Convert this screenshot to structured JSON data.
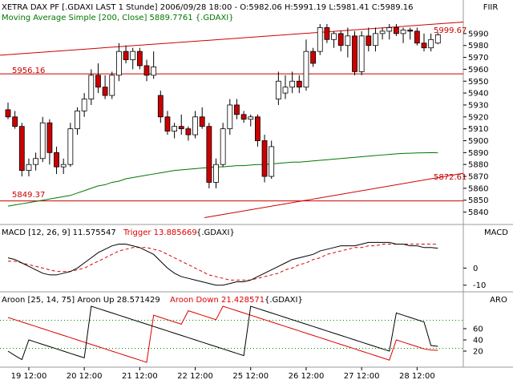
{
  "window": {
    "fiir_label": "FIIR",
    "macd_label": "MACD",
    "aro_label": "ARO"
  },
  "price_panel": {
    "header": "XETRA DAX PF [.GDAXI LAST 1 Stunde] 2006/09/28 18:00 - O:5982.06 H:5991.19 L:5981.41 C:5989.16",
    "ma_legend": "Moving Average Simple [200, Close] 5889.7761 {.GDAXI}",
    "line_labels": [
      "5956.16",
      "5849.37",
      "5872.61",
      "5999.67"
    ]
  },
  "macd_panel": {
    "header_main": "MACD [12, 26, 9] 11.575547",
    "header_trigger": "Trigger 13.885669",
    "header_suffix": "{.GDAXI}"
  },
  "aroon_panel": {
    "header_main": "Aroon [25, 14, 75] Aroon Up 28.571429",
    "header_down": "Aroon Down 21.428571",
    "header_suffix": "{.GDAXI}"
  },
  "colors": {
    "background": "#ffffff",
    "up_candle": "#ffffff",
    "down_candle": "#cc0000",
    "moving_average": "#007700",
    "trendline": "#cc0000",
    "macd": "#000000",
    "trigger": "#dd0000",
    "aroon_up": "#000000",
    "aroon_down": "#dd0000",
    "dotted_ref": "#008800"
  },
  "chart_data": [
    {
      "type": "candlestick",
      "x_tick_labels": [
        "19 12:00",
        "20 12:00",
        "21 12:00",
        "22 12:00",
        "25 12:00",
        "26 12:00",
        "27 12:00",
        "28 12:00"
      ],
      "y_tick_labels": [
        5840,
        5850,
        5860,
        5870,
        5880,
        5890,
        5900,
        5910,
        5920,
        5930,
        5940,
        5950,
        5960,
        5970,
        5980,
        5990
      ],
      "ylim": [
        5835,
        5998
      ],
      "candles": [
        {
          "o": 5926,
          "h": 5932,
          "l": 5918,
          "c": 5920
        },
        {
          "o": 5920,
          "h": 5925,
          "l": 5910,
          "c": 5912
        },
        {
          "o": 5912,
          "h": 5915,
          "l": 5870,
          "c": 5875
        },
        {
          "o": 5875,
          "h": 5885,
          "l": 5870,
          "c": 5880
        },
        {
          "o": 5880,
          "h": 5890,
          "l": 5875,
          "c": 5885
        },
        {
          "o": 5885,
          "h": 5920,
          "l": 5882,
          "c": 5915
        },
        {
          "o": 5915,
          "h": 5918,
          "l": 5880,
          "c": 5890
        },
        {
          "o": 5890,
          "h": 5895,
          "l": 5872,
          "c": 5878
        },
        {
          "o": 5878,
          "h": 5885,
          "l": 5872,
          "c": 5880
        },
        {
          "o": 5880,
          "h": 5915,
          "l": 5878,
          "c": 5910
        },
        {
          "o": 5910,
          "h": 5928,
          "l": 5905,
          "c": 5925
        },
        {
          "o": 5925,
          "h": 5940,
          "l": 5920,
          "c": 5935
        },
        {
          "o": 5935,
          "h": 5960,
          "l": 5930,
          "c": 5955
        },
        {
          "o": 5955,
          "h": 5965,
          "l": 5940,
          "c": 5945
        },
        {
          "o": 5945,
          "h": 5955,
          "l": 5935,
          "c": 5938
        },
        {
          "o": 5938,
          "h": 5958,
          "l": 5935,
          "c": 5955
        },
        {
          "o": 5955,
          "h": 5982,
          "l": 5950,
          "c": 5975
        },
        {
          "o": 5975,
          "h": 5980,
          "l": 5965,
          "c": 5968
        },
        {
          "o": 5968,
          "h": 5978,
          "l": 5960,
          "c": 5975
        },
        {
          "o": 5975,
          "h": 5978,
          "l": 5960,
          "c": 5963
        },
        {
          "o": 5963,
          "h": 5968,
          "l": 5950,
          "c": 5955
        },
        {
          "o": 5955,
          "h": 5975,
          "l": 5952,
          "c": 5962
        },
        {
          "o": 5938,
          "h": 5942,
          "l": 5915,
          "c": 5920
        },
        {
          "o": 5920,
          "h": 5925,
          "l": 5905,
          "c": 5908
        },
        {
          "o": 5908,
          "h": 5915,
          "l": 5902,
          "c": 5912
        },
        {
          "o": 5912,
          "h": 5922,
          "l": 5905,
          "c": 5910
        },
        {
          "o": 5910,
          "h": 5912,
          "l": 5900,
          "c": 5905
        },
        {
          "o": 5905,
          "h": 5925,
          "l": 5902,
          "c": 5920
        },
        {
          "o": 5920,
          "h": 5928,
          "l": 5910,
          "c": 5912
        },
        {
          "o": 5912,
          "h": 5915,
          "l": 5860,
          "c": 5865
        },
        {
          "o": 5865,
          "h": 5885,
          "l": 5860,
          "c": 5880
        },
        {
          "o": 5880,
          "h": 5915,
          "l": 5878,
          "c": 5910
        },
        {
          "o": 5910,
          "h": 5935,
          "l": 5905,
          "c": 5930
        },
        {
          "o": 5930,
          "h": 5935,
          "l": 5918,
          "c": 5922
        },
        {
          "o": 5922,
          "h": 5925,
          "l": 5915,
          "c": 5918
        },
        {
          "o": 5918,
          "h": 5922,
          "l": 5912,
          "c": 5920
        },
        {
          "o": 5920,
          "h": 5922,
          "l": 5895,
          "c": 5900
        },
        {
          "o": 5900,
          "h": 5905,
          "l": 5865,
          "c": 5870
        },
        {
          "o": 5870,
          "h": 5900,
          "l": 5868,
          "c": 5895
        },
        {
          "o": 5935,
          "h": 5958,
          "l": 5930,
          "c": 5950
        },
        {
          "o": 5940,
          "h": 5955,
          "l": 5935,
          "c": 5945
        },
        {
          "o": 5945,
          "h": 5958,
          "l": 5940,
          "c": 5950
        },
        {
          "o": 5950,
          "h": 5955,
          "l": 5940,
          "c": 5945
        },
        {
          "o": 5945,
          "h": 5985,
          "l": 5942,
          "c": 5975
        },
        {
          "o": 5975,
          "h": 5978,
          "l": 5962,
          "c": 5965
        },
        {
          "o": 5975,
          "h": 5998,
          "l": 5972,
          "c": 5995
        },
        {
          "o": 5995,
          "h": 5998,
          "l": 5982,
          "c": 5985
        },
        {
          "o": 5985,
          "h": 5992,
          "l": 5978,
          "c": 5990
        },
        {
          "o": 5990,
          "h": 5992,
          "l": 5975,
          "c": 5980
        },
        {
          "o": 5980,
          "h": 5995,
          "l": 5970,
          "c": 5988
        },
        {
          "o": 5988,
          "h": 5992,
          "l": 5955,
          "c": 5958
        },
        {
          "o": 5958,
          "h": 5992,
          "l": 5955,
          "c": 5988
        },
        {
          "o": 5988,
          "h": 5995,
          "l": 5975,
          "c": 5980
        },
        {
          "o": 5980,
          "h": 5995,
          "l": 5975,
          "c": 5990
        },
        {
          "o": 5990,
          "h": 5995,
          "l": 5985,
          "c": 5992
        },
        {
          "o": 5992,
          "h": 5998,
          "l": 5985,
          "c": 5995
        },
        {
          "o": 5995,
          "h": 5998,
          "l": 5988,
          "c": 5990
        },
        {
          "o": 5990,
          "h": 5995,
          "l": 5982,
          "c": 5993
        },
        {
          "o": 5993,
          "h": 5995,
          "l": 5985,
          "c": 5992
        },
        {
          "o": 5992,
          "h": 5995,
          "l": 5980,
          "c": 5982
        },
        {
          "o": 5982,
          "h": 5990,
          "l": 5975,
          "c": 5978
        },
        {
          "o": 5978,
          "h": 5990,
          "l": 5975,
          "c": 5985
        },
        {
          "o": 5982,
          "h": 5991,
          "l": 5981,
          "c": 5989
        }
      ],
      "moving_average": [
        5845,
        5846,
        5847,
        5848,
        5849,
        5850,
        5851,
        5852,
        5853,
        5854,
        5856,
        5858,
        5860,
        5862,
        5863,
        5865,
        5866,
        5868,
        5869,
        5870,
        5871,
        5872,
        5873,
        5874,
        5875,
        5875.5,
        5876,
        5876.5,
        5877,
        5877.5,
        5878,
        5878,
        5878.5,
        5879,
        5879,
        5879.5,
        5880,
        5880,
        5880.5,
        5881,
        5881.5,
        5882,
        5882,
        5882.5,
        5883,
        5883.5,
        5884,
        5884.5,
        5885,
        5885.5,
        5886,
        5886.5,
        5887,
        5887.5,
        5888,
        5888.5,
        5889,
        5889.3,
        5889.5,
        5889.7,
        5889.8,
        5890,
        5889.78
      ],
      "horizontal_levels": [
        5956.16,
        5849.37
      ],
      "upper_trendline": [
        5971.8,
        5999.67
      ],
      "lower_trendline": [
        5835.3,
        5872.61
      ]
    },
    {
      "type": "line",
      "name_label": "MACD",
      "y_tick_labels": [
        0,
        -10
      ],
      "ylim": [
        -12,
        18
      ],
      "macd": [
        6,
        5,
        3,
        1,
        -1,
        -3,
        -4,
        -4,
        -3,
        -2,
        0,
        3,
        6,
        9,
        11,
        13,
        14,
        14,
        13,
        12,
        10,
        8,
        4,
        0,
        -3,
        -5,
        -6,
        -7,
        -8,
        -9,
        -10,
        -10,
        -9,
        -8,
        -8,
        -7,
        -5,
        -3,
        -1,
        1,
        3,
        5,
        6,
        7,
        8,
        10,
        11,
        12,
        13,
        13,
        13,
        14,
        15,
        15,
        15,
        15,
        14,
        14,
        13,
        13,
        12,
        12,
        11.6
      ],
      "trigger": [
        4,
        4,
        3,
        2,
        1,
        0,
        -1,
        -2,
        -2,
        -2,
        -1,
        0,
        2,
        4,
        6,
        8,
        10,
        11,
        12,
        12,
        12,
        11,
        10,
        8,
        6,
        4,
        2,
        0,
        -2,
        -4,
        -5,
        -6,
        -7,
        -7,
        -7,
        -7,
        -6,
        -5,
        -4,
        -3,
        -1,
        0,
        2,
        3,
        5,
        6,
        8,
        9,
        10,
        11,
        12,
        12,
        13,
        13,
        14,
        14,
        14,
        14,
        14,
        14,
        14,
        14,
        13.9
      ]
    },
    {
      "type": "line",
      "name_label": "ARO",
      "y_tick_labels": [
        60,
        40,
        20
      ],
      "ylim": [
        0,
        100
      ],
      "reference_levels": [
        75,
        25
      ],
      "aroon_up": [
        20,
        12,
        5,
        40,
        36,
        32,
        28,
        24,
        20,
        16,
        12,
        8,
        100,
        96,
        92,
        88,
        84,
        80,
        76,
        72,
        68,
        64,
        60,
        56,
        52,
        48,
        44,
        40,
        36,
        32,
        28,
        24,
        20,
        16,
        12,
        100,
        96,
        92,
        88,
        84,
        80,
        76,
        72,
        68,
        64,
        60,
        56,
        52,
        48,
        44,
        40,
        36,
        32,
        28,
        24,
        20,
        88,
        84,
        80,
        76,
        72,
        30,
        28.6
      ],
      "aroon_down": [
        80,
        76,
        72,
        68,
        64,
        60,
        56,
        52,
        48,
        44,
        40,
        36,
        32,
        28,
        24,
        20,
        16,
        12,
        8,
        4,
        0,
        84,
        80,
        76,
        72,
        68,
        92,
        88,
        84,
        80,
        76,
        100,
        96,
        92,
        88,
        84,
        80,
        76,
        72,
        68,
        64,
        60,
        56,
        52,
        48,
        44,
        40,
        36,
        32,
        28,
        24,
        20,
        16,
        12,
        8,
        4,
        40,
        36,
        32,
        28,
        24,
        22,
        21.4
      ]
    }
  ]
}
